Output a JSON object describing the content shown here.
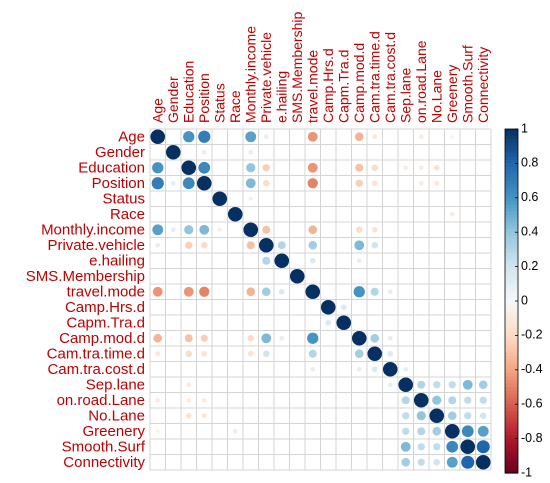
{
  "chart_data": {
    "type": "heatmap",
    "variables": [
      "Age",
      "Gender",
      "Education",
      "Position",
      "Status",
      "Race",
      "Monthly.income",
      "Private.vehicle",
      "e.hailing",
      "SMS.Membership",
      "travel.mode",
      "Camp.Hrs.d",
      "Capm.Tra.d",
      "Camp.mod.d",
      "Cam.tra.time.d",
      "Cam.tra.cost.d",
      "Sep.lane",
      "on.road.Lane",
      "No.Lane",
      "Greenery",
      "Smooth.Surf",
      "Connectivity"
    ],
    "correlations": [
      {
        "row": "Age",
        "col": "Education",
        "value": 0.6
      },
      {
        "row": "Age",
        "col": "Position",
        "value": 0.7
      },
      {
        "row": "Age",
        "col": "Monthly.income",
        "value": 0.55
      },
      {
        "row": "Age",
        "col": "Private.vehicle",
        "value": 0.1
      },
      {
        "row": "Age",
        "col": "travel.mode",
        "value": -0.45
      },
      {
        "row": "Age",
        "col": "Camp.mod.d",
        "value": -0.35
      },
      {
        "row": "Age",
        "col": "Cam.tra.time.d",
        "value": -0.12
      },
      {
        "row": "Age",
        "col": "on.road.Lane",
        "value": -0.1
      },
      {
        "row": "Age",
        "col": "Greenery",
        "value": -0.06
      },
      {
        "row": "Gender",
        "col": "Position",
        "value": 0.1
      },
      {
        "row": "Gender",
        "col": "Monthly.income",
        "value": 0.1
      },
      {
        "row": "Education",
        "col": "Position",
        "value": 0.65
      },
      {
        "row": "Education",
        "col": "Monthly.income",
        "value": 0.4
      },
      {
        "row": "Education",
        "col": "Private.vehicle",
        "value": -0.25
      },
      {
        "row": "Education",
        "col": "travel.mode",
        "value": -0.45
      },
      {
        "row": "Education",
        "col": "Camp.mod.d",
        "value": -0.3
      },
      {
        "row": "Education",
        "col": "Cam.tra.time.d",
        "value": -0.2
      },
      {
        "row": "Education",
        "col": "Sep.lane",
        "value": -0.1
      },
      {
        "row": "Education",
        "col": "on.road.Lane",
        "value": -0.1
      },
      {
        "row": "Education",
        "col": "No.Lane",
        "value": -0.15
      },
      {
        "row": "Position",
        "col": "Monthly.income",
        "value": 0.45
      },
      {
        "row": "Position",
        "col": "Private.vehicle",
        "value": -0.2
      },
      {
        "row": "Position",
        "col": "travel.mode",
        "value": -0.5
      },
      {
        "row": "Position",
        "col": "Camp.mod.d",
        "value": -0.25
      },
      {
        "row": "Position",
        "col": "Cam.tra.time.d",
        "value": -0.15
      },
      {
        "row": "Position",
        "col": "on.road.Lane",
        "value": -0.1
      },
      {
        "row": "Position",
        "col": "No.Lane",
        "value": -0.12
      },
      {
        "row": "Status",
        "col": "Monthly.income",
        "value": -0.08
      },
      {
        "row": "Race",
        "col": "Greenery",
        "value": -0.1
      },
      {
        "row": "Monthly.income",
        "col": "Private.vehicle",
        "value": -0.3
      },
      {
        "row": "Monthly.income",
        "col": "travel.mode",
        "value": -0.35
      },
      {
        "row": "Monthly.income",
        "col": "Camp.mod.d",
        "value": -0.2
      },
      {
        "row": "Monthly.income",
        "col": "Cam.tra.time.d",
        "value": -0.15
      },
      {
        "row": "Private.vehicle",
        "col": "e.hailing",
        "value": 0.3
      },
      {
        "row": "Private.vehicle",
        "col": "travel.mode",
        "value": 0.35
      },
      {
        "row": "Private.vehicle",
        "col": "Camp.mod.d",
        "value": 0.45
      },
      {
        "row": "Private.vehicle",
        "col": "Cam.tra.time.d",
        "value": 0.2
      },
      {
        "row": "e.hailing",
        "col": "travel.mode",
        "value": 0.15
      },
      {
        "row": "e.hailing",
        "col": "Camp.mod.d",
        "value": 0.1
      },
      {
        "row": "travel.mode",
        "col": "Camp.mod.d",
        "value": 0.6
      },
      {
        "row": "travel.mode",
        "col": "Cam.tra.time.d",
        "value": 0.3
      },
      {
        "row": "travel.mode",
        "col": "Cam.tra.cost.d",
        "value": 0.1
      },
      {
        "row": "Camp.Hrs.d",
        "col": "Capm.Tra.d",
        "value": 0.15
      },
      {
        "row": "Camp.mod.d",
        "col": "Cam.tra.time.d",
        "value": 0.35
      },
      {
        "row": "Camp.mod.d",
        "col": "Cam.tra.cost.d",
        "value": 0.1
      },
      {
        "row": "Cam.tra.time.d",
        "col": "Cam.tra.cost.d",
        "value": 0.15
      },
      {
        "row": "Cam.tra.cost.d",
        "col": "Sep.lane",
        "value": 0.1
      },
      {
        "row": "Sep.lane",
        "col": "on.road.Lane",
        "value": 0.3
      },
      {
        "row": "Sep.lane",
        "col": "No.Lane",
        "value": 0.25
      },
      {
        "row": "Sep.lane",
        "col": "Greenery",
        "value": 0.25
      },
      {
        "row": "Sep.lane",
        "col": "Smooth.Surf",
        "value": 0.45
      },
      {
        "row": "Sep.lane",
        "col": "Connectivity",
        "value": 0.35
      },
      {
        "row": "on.road.Lane",
        "col": "No.Lane",
        "value": 0.4
      },
      {
        "row": "on.road.Lane",
        "col": "Greenery",
        "value": 0.3
      },
      {
        "row": "on.road.Lane",
        "col": "Smooth.Surf",
        "value": 0.25
      },
      {
        "row": "on.road.Lane",
        "col": "Connectivity",
        "value": 0.25
      },
      {
        "row": "No.Lane",
        "col": "Greenery",
        "value": 0.35
      },
      {
        "row": "No.Lane",
        "col": "Smooth.Surf",
        "value": 0.25
      },
      {
        "row": "No.Lane",
        "col": "Connectivity",
        "value": 0.2
      },
      {
        "row": "Greenery",
        "col": "Smooth.Surf",
        "value": 0.65
      },
      {
        "row": "Greenery",
        "col": "Connectivity",
        "value": 0.55
      },
      {
        "row": "Smooth.Surf",
        "col": "Connectivity",
        "value": 0.8
      }
    ],
    "colorbar": {
      "ticks": [
        "1",
        "0.8",
        "0.6",
        "0.4",
        "0.2",
        "0",
        "-0.2",
        "-0.4",
        "-0.6",
        "-0.8",
        "-1"
      ],
      "range": [
        -1,
        1
      ],
      "colors": {
        "neg_strong": "#67001f",
        "neg_mid": "#d6604d",
        "zero": "#f7f7f7",
        "pos_mid": "#4393c3",
        "pos_strong": "#053061"
      }
    },
    "label_color": "#c00000",
    "grid": true
  }
}
